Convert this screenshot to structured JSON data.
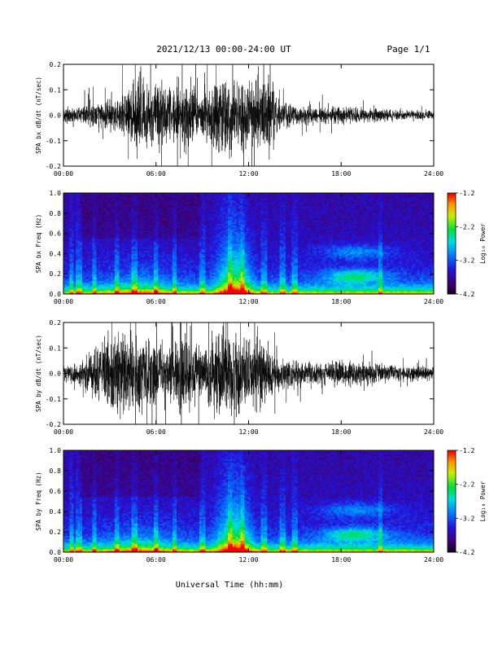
{
  "header": {
    "title": "2021/12/13  00:00-24:00 UT",
    "page": "Page 1/1"
  },
  "xaxis_label": "Universal Time (hh:mm)",
  "chart_data": [
    {
      "type": "line",
      "ylabel": "SPA bx dB/dt (nT/sec)",
      "xlim": [
        "00:00",
        "24:00"
      ],
      "xtick_labels": [
        "00:00",
        "06:00",
        "12:00",
        "18:00",
        "24:00"
      ],
      "ylim": [
        -0.2,
        0.2
      ],
      "yticks": [
        -0.2,
        -0.1,
        0.0,
        0.1,
        0.2
      ],
      "ytick_labels": [
        "-0.2",
        "-0.1",
        "0.0",
        "0.1",
        "0.2"
      ],
      "envelope": {
        "hours": [
          0,
          1,
          2,
          3,
          4,
          4.5,
          5,
          5.5,
          6,
          6.5,
          7,
          7.5,
          8,
          9,
          10,
          10.5,
          11,
          11.5,
          12,
          12.5,
          13,
          13.5,
          14,
          15,
          16,
          17,
          18,
          19,
          20,
          21,
          22,
          23,
          24
        ],
        "amplitude": [
          0.035,
          0.045,
          0.06,
          0.07,
          0.11,
          0.2,
          0.2,
          0.15,
          0.2,
          0.2,
          0.13,
          0.2,
          0.2,
          0.1,
          0.2,
          0.2,
          0.2,
          0.2,
          0.2,
          0.2,
          0.18,
          0.2,
          0.08,
          0.05,
          0.045,
          0.04,
          0.05,
          0.04,
          0.035,
          0.03,
          0.03,
          0.025,
          0.022
        ]
      }
    },
    {
      "type": "heatmap",
      "ylabel": "SPA bx Freq (Hz)",
      "xlim": [
        "00:00",
        "24:00"
      ],
      "xtick_labels": [
        "00:00",
        "06:00",
        "12:00",
        "18:00",
        "24:00"
      ],
      "ylim": [
        0.0,
        1.0
      ],
      "yticks": [
        0.0,
        0.2,
        0.4,
        0.6,
        0.8,
        1.0
      ],
      "ytick_labels": [
        "0.0",
        "0.2",
        "0.4",
        "0.6",
        "0.8",
        "1.0"
      ],
      "colorbar": {
        "label": "Log₁₀ Power",
        "range": [
          -4.2,
          -1.2
        ],
        "ticks": [
          -4.2,
          -3.2,
          -2.2,
          -1.2
        ],
        "tick_labels": [
          "-4.2",
          "-3.2",
          "-2.2",
          "-1.2"
        ]
      }
    },
    {
      "type": "line",
      "ylabel": "SPA by dB/dt (nT/sec)",
      "xlim": [
        "00:00",
        "24:00"
      ],
      "xtick_labels": [
        "00:00",
        "06:00",
        "12:00",
        "18:00",
        "24:00"
      ],
      "ylim": [
        -0.2,
        0.2
      ],
      "yticks": [
        -0.2,
        -0.1,
        0.0,
        0.1,
        0.2
      ],
      "ytick_labels": [
        "-0.2",
        "-0.1",
        "0.0",
        "0.1",
        "0.2"
      ],
      "envelope": {
        "hours": [
          0,
          1,
          2,
          3,
          4,
          4.5,
          5,
          5.5,
          6,
          6.5,
          7,
          7.5,
          8,
          9,
          10,
          10.5,
          11,
          11.5,
          12,
          12.5,
          13,
          13.5,
          14,
          15,
          16,
          17,
          18,
          19,
          20,
          21,
          22,
          23,
          24
        ],
        "amplitude": [
          0.04,
          0.05,
          0.12,
          0.2,
          0.2,
          0.2,
          0.2,
          0.2,
          0.2,
          0.18,
          0.12,
          0.2,
          0.2,
          0.12,
          0.2,
          0.2,
          0.2,
          0.2,
          0.18,
          0.2,
          0.15,
          0.12,
          0.09,
          0.08,
          0.06,
          0.05,
          0.07,
          0.06,
          0.05,
          0.045,
          0.04,
          0.04,
          0.035
        ]
      }
    },
    {
      "type": "heatmap",
      "ylabel": "SPA by Freq (Hz)",
      "xlim": [
        "00:00",
        "24:00"
      ],
      "xtick_labels": [
        "00:00",
        "06:00",
        "12:00",
        "18:00",
        "24:00"
      ],
      "ylim": [
        0.0,
        1.0
      ],
      "yticks": [
        0.0,
        0.2,
        0.4,
        0.6,
        0.8,
        1.0
      ],
      "ytick_labels": [
        "0.0",
        "0.2",
        "0.4",
        "0.6",
        "0.8",
        "1.0"
      ],
      "colorbar": {
        "label": "Log₁₀ Power",
        "range": [
          -4.2,
          -1.2
        ],
        "ticks": [
          -4.2,
          -3.2,
          -2.2,
          -1.2
        ],
        "tick_labels": [
          "-4.2",
          "-3.2",
          "-2.2",
          "-1.2"
        ]
      }
    }
  ]
}
